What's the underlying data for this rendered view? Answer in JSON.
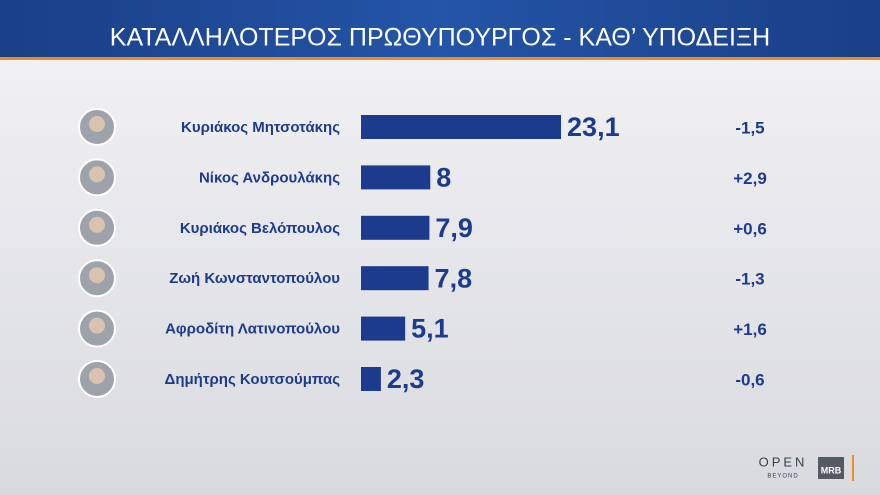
{
  "chart_data": {
    "type": "bar",
    "orientation": "horizontal",
    "title": "ΚΑΤΑΛΛΗΛΟΤΕΡΟΣ  ΠΡΩΘΥΠΟΥΡΓΟΣ - ΚΑΘ’ ΥΠΟΔΕΙΞΗ",
    "categories": [
      "Κυριάκος Μητσοτάκης",
      "Νίκος Ανδρουλάκης",
      "Κυριάκος Βελόπουλος",
      "Ζωή Κωνσταντοπούλου",
      "Αφροδίτη Λατινοπούλου",
      "Δημήτρης Κουτσούμπας"
    ],
    "values": [
      23.1,
      8,
      7.9,
      7.8,
      5.1,
      2.3
    ],
    "value_labels": [
      "23,1",
      "8",
      "7,9",
      "7,8",
      "5,1",
      "2,3"
    ],
    "color": "#1c3b8c",
    "changes": [
      {
        "value": -1.5,
        "label": "-1,5"
      },
      {
        "value": 2.9,
        "label": "+2,9"
      },
      {
        "value": 0.6,
        "label": "+0,6"
      },
      {
        "value": -1.3,
        "label": "-1,3"
      },
      {
        "value": 1.6,
        "label": "+1,6"
      },
      {
        "value": -0.6,
        "label": "-0,6"
      }
    ]
  },
  "branding": {
    "channel": "OPEN",
    "tagline": "BEYOND",
    "pollster": "MRB"
  }
}
